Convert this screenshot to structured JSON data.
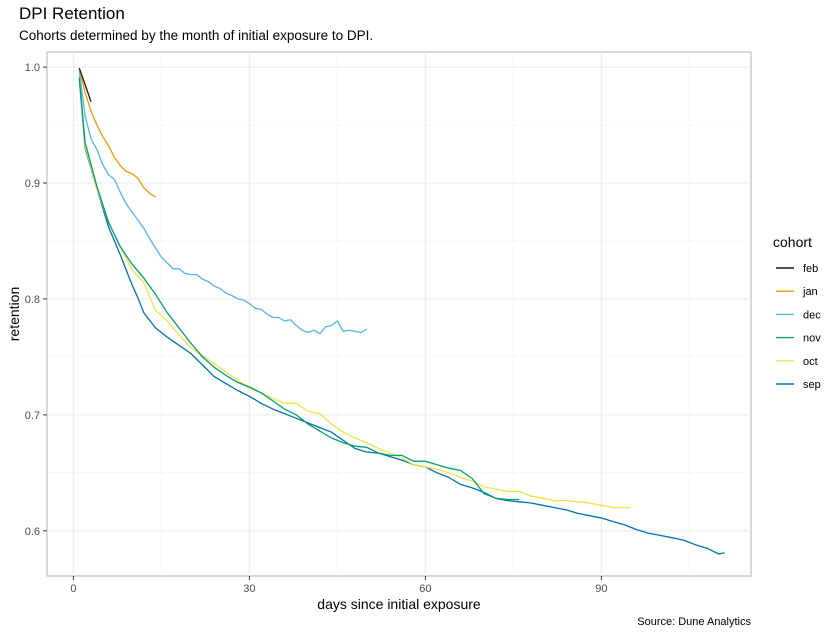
{
  "chart_data": {
    "type": "line",
    "title": "DPI Retention",
    "subtitle": "Cohorts determined by the month of initial exposure to DPI.",
    "caption": "Source: Dune Analytics",
    "xlabel": "days since initial exposure",
    "ylabel": "retention",
    "xlim": [
      -4.5,
      115.5
    ],
    "ylim": [
      0.561,
      1.013
    ],
    "x_ticks": [
      0,
      30,
      60,
      90
    ],
    "y_ticks": [
      0.6,
      0.7,
      0.8,
      0.9,
      1.0
    ],
    "y_tick_labels": [
      "0.6",
      "0.7",
      "0.8",
      "0.9",
      "1.0"
    ],
    "grid": true,
    "legend": {
      "title": "cohort",
      "position": "right"
    },
    "series": [
      {
        "name": "feb",
        "color": "#1a1a1a",
        "x": [
          1,
          2,
          3
        ],
        "values": [
          0.999,
          0.985,
          0.97
        ]
      },
      {
        "name": "jan",
        "color": "#E69F00",
        "x": [
          1,
          2,
          3,
          4,
          5,
          6,
          7,
          8,
          9,
          10,
          11,
          12,
          13,
          14
        ],
        "values": [
          0.999,
          0.978,
          0.962,
          0.95,
          0.94,
          0.932,
          0.922,
          0.915,
          0.91,
          0.908,
          0.904,
          0.896,
          0.891,
          0.888
        ]
      },
      {
        "name": "dec",
        "color": "#56B4E9",
        "x": [
          1,
          2,
          3,
          4,
          5,
          6,
          7,
          8,
          9,
          10,
          11,
          12,
          13,
          14,
          15,
          16,
          17,
          18,
          19,
          20,
          21,
          22,
          23,
          24,
          25,
          26,
          27,
          28,
          29,
          30,
          31,
          32,
          33,
          34,
          35,
          36,
          37,
          38,
          39,
          40,
          41,
          42,
          43,
          44,
          45,
          46,
          47,
          48,
          49,
          50
        ],
        "values": [
          0.997,
          0.958,
          0.938,
          0.929,
          0.916,
          0.907,
          0.903,
          0.892,
          0.882,
          0.875,
          0.868,
          0.861,
          0.852,
          0.844,
          0.836,
          0.831,
          0.826,
          0.826,
          0.822,
          0.821,
          0.821,
          0.817,
          0.815,
          0.811,
          0.809,
          0.805,
          0.803,
          0.8,
          0.799,
          0.796,
          0.792,
          0.791,
          0.787,
          0.784,
          0.784,
          0.781,
          0.782,
          0.777,
          0.773,
          0.771,
          0.773,
          0.77,
          0.776,
          0.777,
          0.781,
          0.772,
          0.773,
          0.772,
          0.771,
          0.774
        ]
      },
      {
        "name": "nov",
        "color": "#009E73",
        "x": [
          1,
          2,
          4,
          6,
          8,
          10,
          12,
          14,
          16,
          18,
          20,
          22,
          24,
          26,
          28,
          30,
          32,
          34,
          36,
          38,
          40,
          42,
          44,
          46,
          48,
          50,
          52,
          54,
          56,
          58,
          60,
          62,
          64,
          66,
          68,
          70,
          72,
          74,
          76
        ],
        "values": [
          0.991,
          0.935,
          0.897,
          0.866,
          0.845,
          0.83,
          0.818,
          0.804,
          0.788,
          0.775,
          0.762,
          0.75,
          0.741,
          0.734,
          0.728,
          0.724,
          0.719,
          0.712,
          0.705,
          0.7,
          0.692,
          0.686,
          0.68,
          0.676,
          0.673,
          0.672,
          0.667,
          0.665,
          0.665,
          0.66,
          0.66,
          0.657,
          0.654,
          0.652,
          0.645,
          0.632,
          0.628,
          0.627,
          0.627
        ]
      },
      {
        "name": "oct",
        "color": "#F0E442",
        "x": [
          1,
          2,
          4,
          6,
          8,
          10,
          12,
          14,
          16,
          18,
          20,
          22,
          24,
          26,
          28,
          30,
          32,
          34,
          36,
          38,
          40,
          42,
          44,
          46,
          48,
          50,
          52,
          54,
          56,
          58,
          60,
          62,
          64,
          66,
          68,
          70,
          72,
          74,
          76,
          78,
          80,
          82,
          84,
          86,
          88,
          90,
          92,
          94,
          95
        ],
        "values": [
          0.993,
          0.932,
          0.895,
          0.866,
          0.845,
          0.825,
          0.814,
          0.79,
          0.781,
          0.769,
          0.758,
          0.751,
          0.744,
          0.737,
          0.73,
          0.723,
          0.719,
          0.714,
          0.71,
          0.71,
          0.703,
          0.701,
          0.692,
          0.685,
          0.68,
          0.676,
          0.671,
          0.667,
          0.663,
          0.657,
          0.655,
          0.653,
          0.65,
          0.646,
          0.643,
          0.638,
          0.636,
          0.634,
          0.634,
          0.63,
          0.628,
          0.626,
          0.626,
          0.625,
          0.624,
          0.622,
          0.62,
          0.62,
          0.62
        ]
      },
      {
        "name": "sep",
        "color": "#0072B2",
        "x": [
          1,
          2,
          4,
          6,
          8,
          10,
          11,
          12,
          14,
          16,
          18,
          20,
          22,
          24,
          26,
          28,
          30,
          32,
          34,
          36,
          38,
          40,
          42,
          44,
          46,
          48,
          50,
          52,
          54,
          56,
          58,
          60,
          62,
          64,
          66,
          68,
          70,
          72,
          74,
          76,
          78,
          80,
          82,
          84,
          86,
          88,
          90,
          92,
          94,
          96,
          98,
          100,
          102,
          104,
          106,
          108,
          110,
          111
        ],
        "values": [
          0.99,
          0.93,
          0.895,
          0.862,
          0.838,
          0.812,
          0.801,
          0.788,
          0.775,
          0.767,
          0.76,
          0.753,
          0.743,
          0.733,
          0.727,
          0.721,
          0.716,
          0.71,
          0.705,
          0.701,
          0.697,
          0.693,
          0.689,
          0.685,
          0.678,
          0.671,
          0.668,
          0.667,
          0.664,
          0.661,
          0.657,
          0.655,
          0.65,
          0.646,
          0.64,
          0.637,
          0.633,
          0.628,
          0.626,
          0.625,
          0.624,
          0.622,
          0.62,
          0.618,
          0.615,
          0.613,
          0.611,
          0.608,
          0.605,
          0.601,
          0.598,
          0.596,
          0.594,
          0.592,
          0.588,
          0.585,
          0.58,
          0.581
        ]
      }
    ]
  }
}
